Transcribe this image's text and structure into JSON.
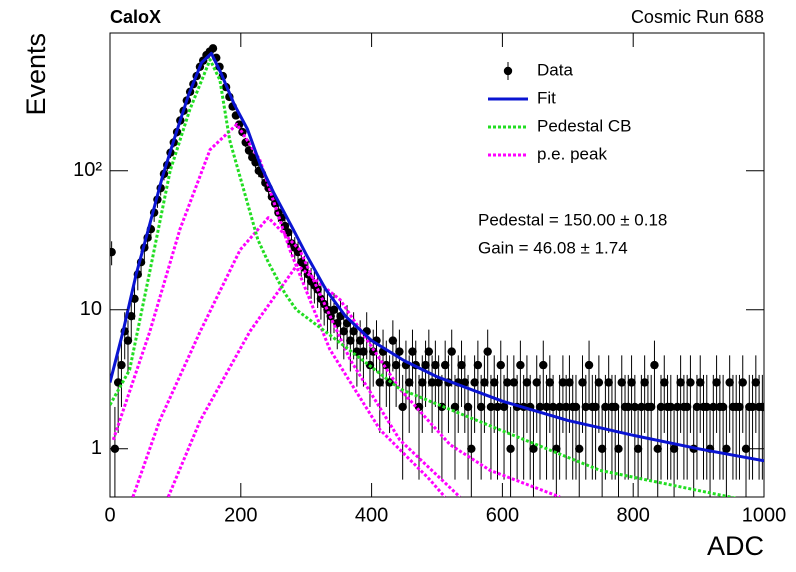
{
  "chart_data": {
    "type": "scatter",
    "title": "CaloX",
    "subtitle": "Cosmic Run 688",
    "xlabel": "ADC",
    "ylabel": "Events",
    "xlim": [
      0,
      1000
    ],
    "ylim": [
      0.45,
      980
    ],
    "xticks": [
      0,
      200,
      400,
      600,
      800,
      1000
    ],
    "yticks": [
      1,
      10,
      {
        "value": 100,
        "label": "10²"
      }
    ],
    "log_y": true,
    "legend_position": "upper right",
    "annotations": [
      "Pedestal = 150.00 ± 0.18",
      "Gain = 46.08 ± 1.74"
    ],
    "series": [
      {
        "name": "Data",
        "type": "scatter",
        "color": "#000000",
        "x": [
          2.5,
          7.5,
          12.5,
          17.5,
          22.5,
          27.5,
          32.5,
          37.5,
          42.5,
          47.5,
          52.5,
          57.5,
          62.5,
          67.5,
          72.5,
          77.5,
          82.5,
          87.5,
          92.5,
          97.5,
          102.5,
          107.5,
          112.5,
          117.5,
          122.5,
          127.5,
          132.5,
          137.5,
          142.5,
          147.5,
          152.5,
          157.5,
          162.5,
          167.5,
          172.5,
          177.5,
          182.5,
          187.5,
          192.5,
          197.5,
          202.5,
          207.5,
          212.5,
          217.5,
          222.5,
          227.5,
          232.5,
          237.5,
          242.5,
          247.5,
          252.5,
          257.5,
          262.5,
          267.5,
          272.5,
          277.5,
          282.5,
          287.5,
          292.5,
          297.5,
          302.5,
          307.5,
          312.5,
          317.5,
          322.5,
          327.5,
          332.5,
          337.5,
          342.5,
          347.5,
          352.5,
          357.5,
          362.5,
          367.5,
          372.5,
          377.5,
          382.5,
          387.5,
          392.5,
          397.5,
          402.5,
          407.5,
          412.5,
          417.5,
          422.5,
          427.5,
          432.5,
          437.5,
          442.5,
          447.5,
          452.5,
          457.5,
          462.5,
          467.5,
          472.5,
          477.5,
          482.5,
          487.5,
          492.5,
          497.5,
          502.5,
          507.5,
          512.5,
          517.5,
          522.5,
          527.5,
          532.5,
          537.5,
          542.5,
          547.5,
          552.5,
          557.5,
          562.5,
          567.5,
          572.5,
          577.5,
          582.5,
          587.5,
          592.5,
          597.5,
          602.5,
          607.5,
          612.5,
          617.5,
          622.5,
          627.5,
          632.5,
          637.5,
          642.5,
          647.5,
          652.5,
          657.5,
          662.5,
          667.5,
          672.5,
          677.5,
          682.5,
          687.5,
          692.5,
          697.5,
          702.5,
          707.5,
          712.5,
          717.5,
          722.5,
          727.5,
          732.5,
          737.5,
          742.5,
          747.5,
          752.5,
          757.5,
          762.5,
          767.5,
          772.5,
          777.5,
          782.5,
          787.5,
          792.5,
          797.5,
          802.5,
          807.5,
          812.5,
          817.5,
          822.5,
          827.5,
          832.5,
          837.5,
          842.5,
          847.5,
          852.5,
          857.5,
          862.5,
          867.5,
          872.5,
          877.5,
          882.5,
          887.5,
          892.5,
          897.5,
          902.5,
          907.5,
          912.5,
          917.5,
          922.5,
          927.5,
          932.5,
          937.5,
          942.5,
          947.5,
          952.5,
          957.5,
          962.5,
          967.5,
          972.5,
          977.5,
          982.5,
          987.5,
          992.5,
          997.5
        ],
        "values": [
          26,
          1,
          3,
          4,
          7,
          6,
          9,
          12,
          18,
          22,
          28,
          33,
          38,
          50,
          62,
          75,
          95,
          110,
          135,
          160,
          190,
          230,
          270,
          320,
          370,
          420,
          480,
          560,
          620,
          680,
          720,
          760,
          650,
          560,
          480,
          400,
          340,
          290,
          250,
          215,
          190,
          160,
          140,
          125,
          115,
          100,
          95,
          82,
          75,
          65,
          58,
          50,
          46,
          40,
          36,
          30,
          28,
          26,
          22,
          20,
          18,
          16,
          15,
          14,
          12,
          11,
          10,
          9,
          10,
          8,
          9,
          7,
          8,
          6,
          7,
          5,
          6,
          5,
          7,
          4,
          5,
          6,
          3,
          5,
          4,
          3,
          6,
          4,
          5,
          2,
          4,
          3,
          5,
          4,
          2,
          3,
          4,
          5,
          3,
          4,
          3,
          2,
          4,
          3,
          5,
          2,
          3,
          4,
          3,
          2,
          1,
          3,
          4,
          2,
          3,
          5,
          2,
          3,
          2,
          4,
          2,
          3,
          1,
          3,
          2,
          4,
          2,
          3,
          2,
          1,
          3,
          2,
          4,
          2,
          3,
          2,
          1,
          2,
          3,
          2,
          3,
          2,
          2,
          1,
          3,
          2,
          4,
          2,
          2,
          3,
          1,
          2,
          3,
          2,
          2,
          1,
          3,
          2,
          2,
          3,
          2,
          1,
          2,
          3,
          2,
          2,
          4,
          1,
          2,
          3,
          2,
          2,
          1,
          2,
          3,
          2,
          2,
          3,
          1,
          2,
          3,
          2,
          2,
          1,
          2,
          3,
          2,
          2,
          1,
          3,
          2,
          2,
          2,
          3,
          1,
          2,
          2,
          3,
          2,
          2
        ],
        "errors": [
          5.1,
          1,
          1.7,
          2,
          2.6,
          2.4,
          3,
          3.5,
          4.2,
          4.7,
          5.3,
          5.7,
          6.2,
          7.1,
          7.9,
          8.7,
          9.7,
          10.5,
          11.6,
          12.6,
          13.8,
          15.2,
          16.4,
          17.9,
          19.2,
          20.5,
          21.9,
          23.7,
          24.9,
          26.1,
          26.8,
          27.6,
          25.5,
          23.7,
          21.9,
          20,
          18.4,
          17,
          15.8,
          14.7,
          13.8,
          12.6,
          11.8,
          11.2,
          10.7,
          10,
          9.7,
          9.1,
          8.7,
          8.1,
          7.6,
          7.1,
          6.8,
          6.3,
          6,
          5.5,
          5.3,
          5.1,
          4.7,
          4.5,
          4.2,
          4,
          3.9,
          3.7,
          3.5,
          3.3,
          3.2,
          3,
          3.2,
          2.8,
          3,
          2.6,
          2.8,
          2.4,
          2.6,
          2.2,
          2.4,
          2.2,
          2.6,
          2,
          2.2,
          2.4,
          1.7,
          2.2,
          2,
          1.7,
          2.4,
          2,
          2.2,
          1.4,
          2,
          1.7,
          2.2,
          2,
          1.4,
          1.7,
          2,
          2.2,
          1.7,
          2,
          1.7,
          1.4,
          2,
          1.7,
          2.2,
          1.4,
          1.7,
          2,
          1.7,
          1.4,
          1,
          1.7,
          2,
          1.4,
          1.7,
          2.2,
          1.4,
          1.7,
          1.4,
          2,
          1.4,
          1.7,
          1,
          1.7,
          1.4,
          2,
          1.4,
          1.7,
          1.4,
          1,
          1.7,
          1.4,
          2,
          1.4,
          1.7,
          1.4,
          1,
          1.4,
          1.7,
          1.4,
          1.7,
          1.4,
          1.4,
          1,
          1.7,
          1.4,
          2,
          1.4,
          1.4,
          1.7,
          1,
          1.4,
          1.7,
          1.4,
          1.4,
          1,
          1.7,
          1.4,
          1.4,
          1.7,
          1.4,
          1,
          1.4,
          1.7,
          1.4,
          1.4,
          2,
          1,
          1.4,
          1.7,
          1.4,
          1.4,
          1,
          1.4,
          1.7,
          1.4,
          1.4,
          1.7,
          1,
          1.4,
          1.7,
          1.4,
          1.4,
          1,
          1.4,
          1.7,
          1.4,
          1.4,
          1,
          1.7,
          1.4,
          1.4,
          1.4,
          1.7,
          1,
          1.4,
          1.4,
          1.7,
          1.4,
          1.4
        ]
      },
      {
        "name": "Fit",
        "type": "line",
        "color": "#0a14d2",
        "dashed": false,
        "x": [
          0,
          20,
          40,
          60,
          80,
          100,
          120,
          140,
          155,
          170,
          190,
          210,
          230,
          250,
          280,
          300,
          330,
          360,
          400,
          450,
          500,
          600,
          700,
          800,
          900,
          1000
        ],
        "values": [
          3,
          7,
          18,
          40,
          90,
          180,
          350,
          600,
          700,
          500,
          300,
          200,
          110,
          70,
          38,
          25,
          14,
          9,
          6,
          4.3,
          3.3,
          2.2,
          1.6,
          1.25,
          1,
          0.82
        ]
      },
      {
        "name": "Pedestal CB",
        "type": "line",
        "color": "#22dd22",
        "dashed": true,
        "x": [
          0,
          30,
          61,
          92,
          122,
          153,
          168,
          183,
          226,
          242,
          268,
          285,
          336,
          443,
          596,
          749,
          948,
          1000
        ],
        "values": [
          2.07,
          3.7,
          19,
          100,
          275,
          630,
          450,
          166,
          32,
          22,
          13,
          10,
          6.6,
          2.7,
          1.37,
          0.7,
          0.45,
          0.4
        ]
      },
      {
        "name": "p.e. peak",
        "type": "line",
        "color": "#ff00ff",
        "dashed": true,
        "x": [
          5,
          61,
          107,
          153,
          194,
          229,
          275,
          336,
          413,
          489,
          512,
          null,
          35,
          76,
          138,
          199,
          242,
          290,
          367,
          443,
          535,
          null,
          89,
          138,
          214,
          286,
          352,
          443,
          520,
          581,
          688
        ],
        "values": [
          1.16,
          7,
          38,
          142,
          216,
          120,
          27,
          5.2,
          1.37,
          0.6,
          0.45,
          null,
          0.45,
          1.6,
          7,
          27,
          46,
          27,
          4.4,
          1.16,
          0.45,
          null,
          0.45,
          1.6,
          7,
          21,
          11.8,
          2.7,
          1.07,
          0.7,
          0.45
        ]
      }
    ]
  }
}
